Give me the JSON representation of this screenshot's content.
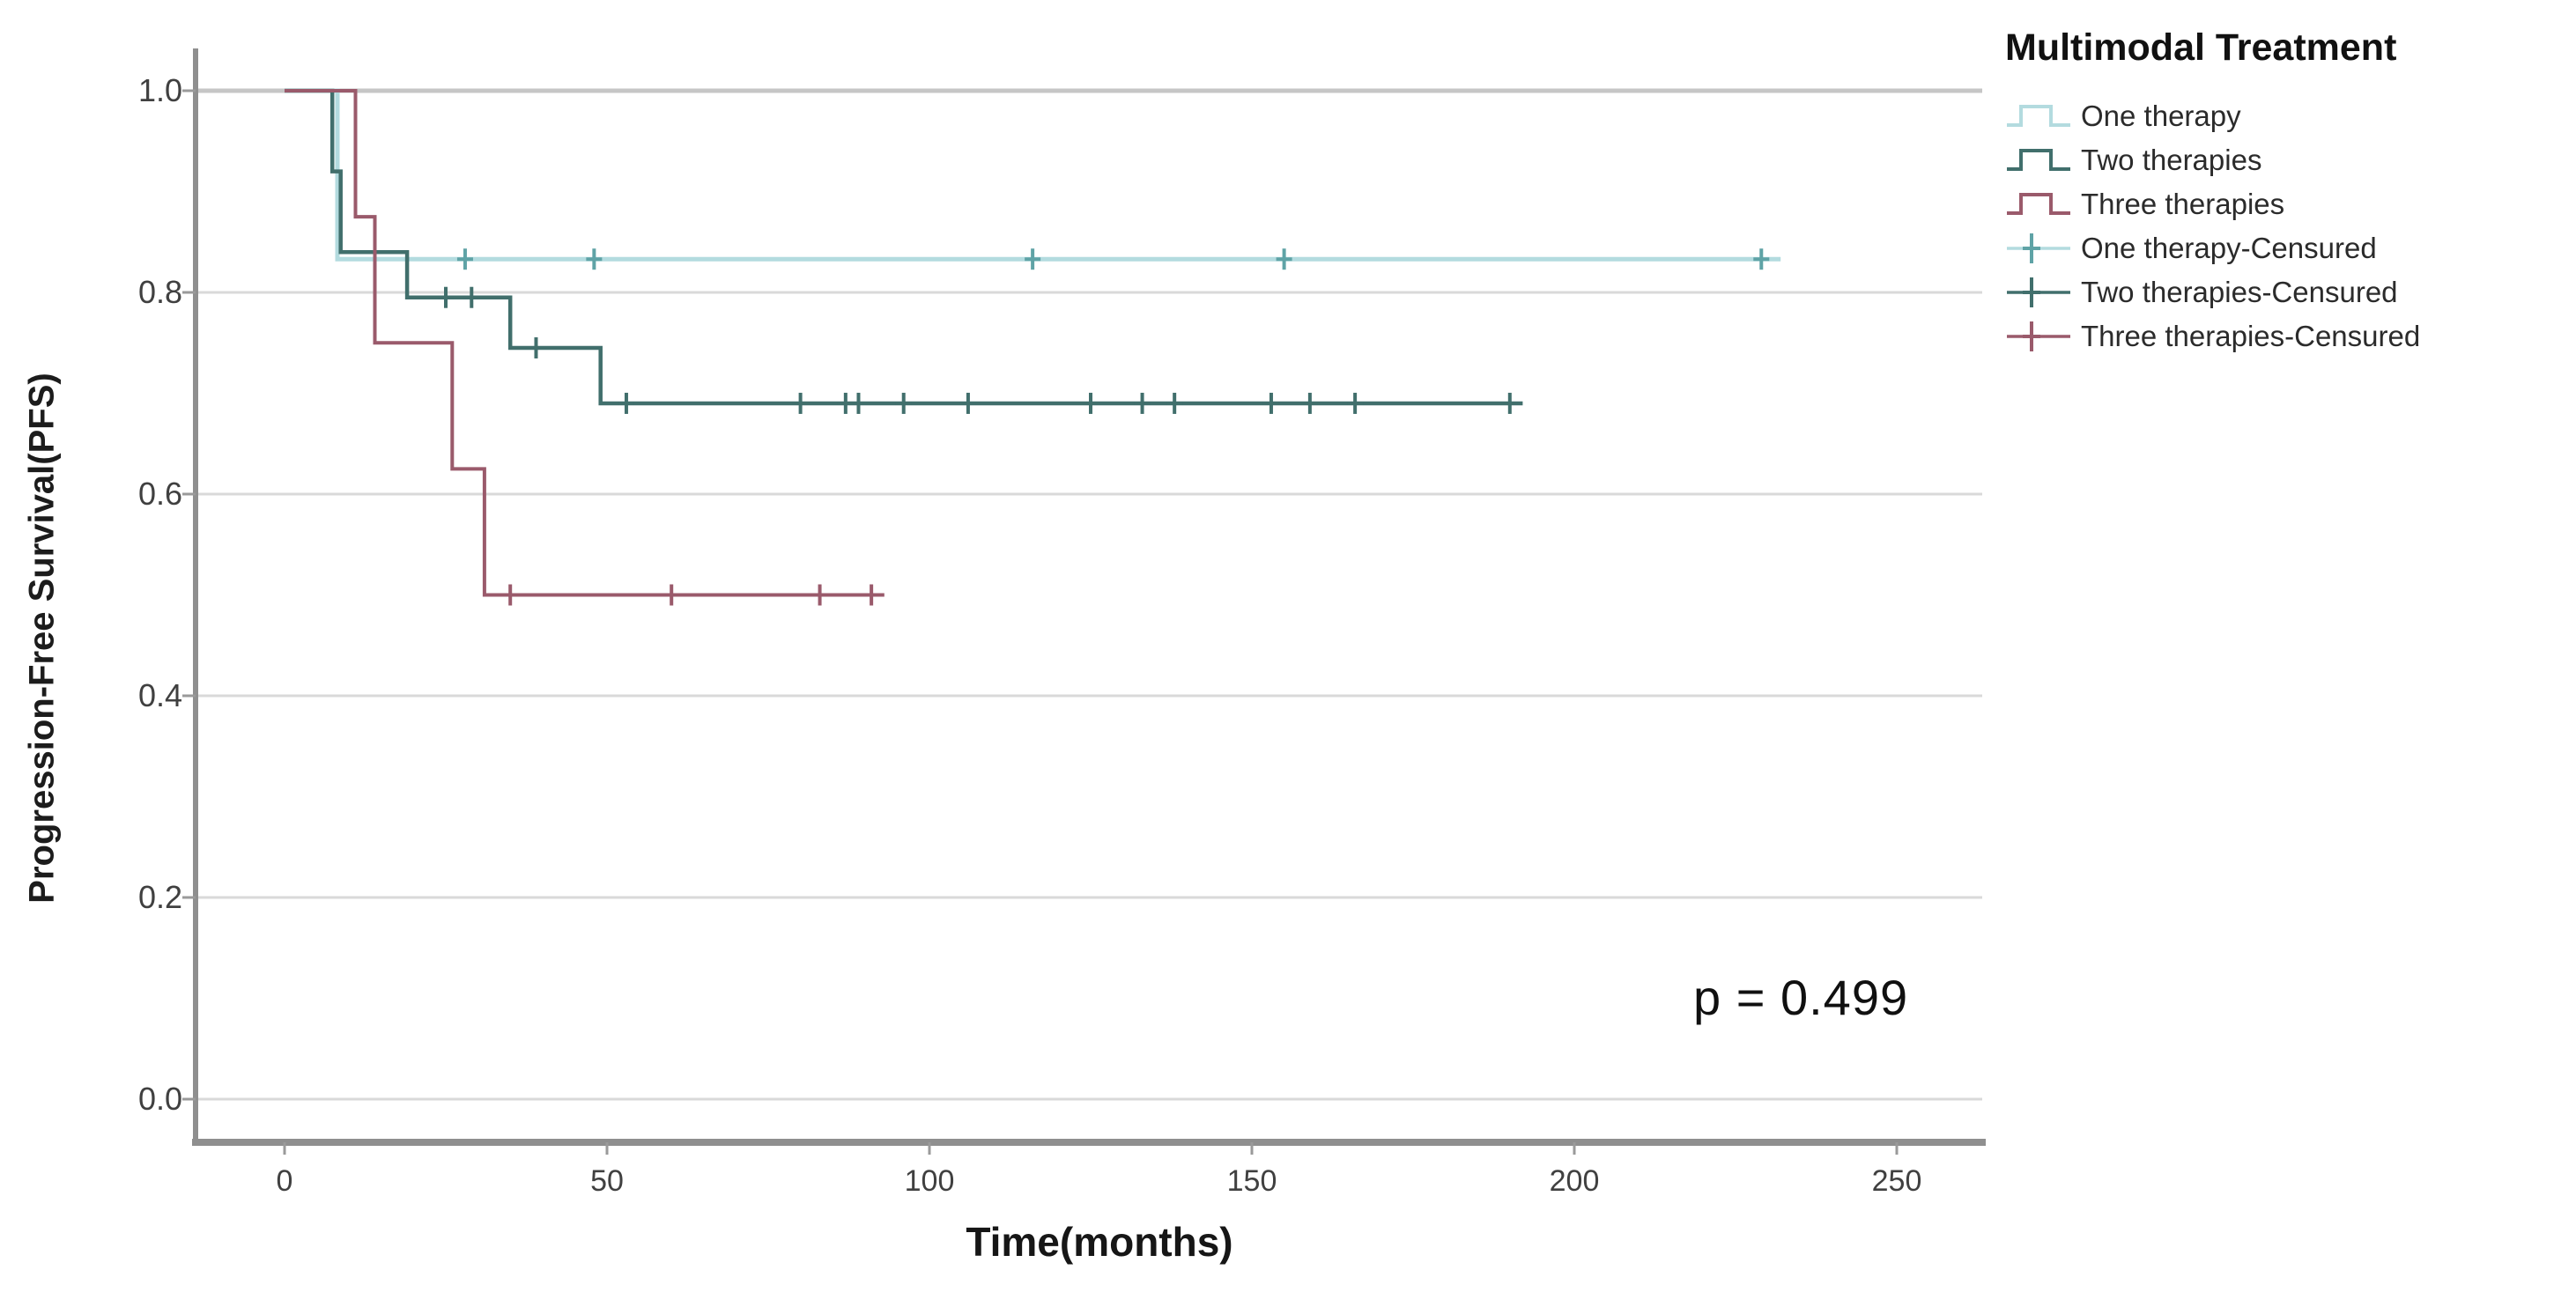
{
  "figure": {
    "y_axis_label": "Progression-Free Survival(PFS)",
    "x_axis_label": "Time(months)",
    "p_value_text": "p = 0.499",
    "legend": {
      "title": "Multimodal Treatment",
      "entries": [
        {
          "label": "One therapy",
          "type": "step",
          "color": "#b3dbdf",
          "marker_color": "#b3dbdf"
        },
        {
          "label": "Two therapies",
          "type": "step",
          "color": "#416f6c",
          "marker_color": "#416f6c"
        },
        {
          "label": "Three therapies",
          "type": "step",
          "color": "#9a5a6b",
          "marker_color": "#9a5a6b"
        },
        {
          "label": "One therapy-Censured",
          "type": "censor",
          "color": "#b3dbdf",
          "marker_color": "#5fa3a6"
        },
        {
          "label": "Two therapies-Censured",
          "type": "censor",
          "color": "#416f6c",
          "marker_color": "#416f6c"
        },
        {
          "label": "Three therapies-Censured",
          "type": "censor",
          "color": "#9a5a6b",
          "marker_color": "#9a5a6b"
        }
      ]
    }
  },
  "chart_data": {
    "type": "line",
    "subtype": "kaplan-meier-step",
    "title": "",
    "xlabel": "Time(months)",
    "ylabel": "Progression-Free Survival(PFS)",
    "xlim": [
      -14,
      263
    ],
    "ylim": [
      -0.04,
      1.04
    ],
    "x_ticks": [
      0,
      50,
      100,
      150,
      200,
      250
    ],
    "x_tick_labels": [
      "0",
      "50",
      "100",
      "150",
      "200",
      "250"
    ],
    "y_ticks": [
      0.0,
      0.2,
      0.4,
      0.6,
      0.8,
      1.0
    ],
    "y_tick_labels": [
      "0.0",
      "0.2",
      "0.4",
      "0.6",
      "0.8",
      "1.0"
    ],
    "grid": "horizontal",
    "legend_position": "right",
    "annotation": {
      "text": "p = 0.499",
      "x": 222,
      "y": 0.1
    },
    "series": [
      {
        "name": "One therapy",
        "color": "#b3dbdf",
        "censor_color": "#5fa3a6",
        "line_width": 5,
        "points": [
          [
            0,
            1.0
          ],
          [
            8.2,
            1.0
          ],
          [
            8.2,
            0.833
          ],
          [
            232,
            0.833
          ]
        ],
        "censors": [
          [
            28,
            0.833
          ],
          [
            48,
            0.833
          ],
          [
            116,
            0.833
          ],
          [
            155,
            0.833
          ],
          [
            229,
            0.833
          ]
        ]
      },
      {
        "name": "Two therapies",
        "color": "#416f6c",
        "censor_color": "#416f6c",
        "line_width": 4.5,
        "points": [
          [
            0,
            1.0
          ],
          [
            7.4,
            1.0
          ],
          [
            7.4,
            0.92
          ],
          [
            8.7,
            0.92
          ],
          [
            8.7,
            0.84
          ],
          [
            19,
            0.84
          ],
          [
            19,
            0.795
          ],
          [
            35,
            0.795
          ],
          [
            35,
            0.745
          ],
          [
            49,
            0.745
          ],
          [
            49,
            0.69
          ],
          [
            192,
            0.69
          ]
        ],
        "censors": [
          [
            25,
            0.795
          ],
          [
            29,
            0.795
          ],
          [
            39,
            0.745
          ],
          [
            53,
            0.69
          ],
          [
            80,
            0.69
          ],
          [
            87,
            0.69
          ],
          [
            89,
            0.69
          ],
          [
            96,
            0.69
          ],
          [
            106,
            0.69
          ],
          [
            125,
            0.69
          ],
          [
            133,
            0.69
          ],
          [
            138,
            0.69
          ],
          [
            153,
            0.69
          ],
          [
            159,
            0.69
          ],
          [
            166,
            0.69
          ],
          [
            190,
            0.69
          ]
        ]
      },
      {
        "name": "Three therapies",
        "color": "#9a5a6b",
        "censor_color": "#9a5a6b",
        "line_width": 4,
        "points": [
          [
            0,
            1.0
          ],
          [
            11,
            1.0
          ],
          [
            11,
            0.875
          ],
          [
            14,
            0.875
          ],
          [
            14,
            0.75
          ],
          [
            26,
            0.75
          ],
          [
            26,
            0.625
          ],
          [
            31,
            0.625
          ],
          [
            31,
            0.5
          ],
          [
            93,
            0.5
          ]
        ],
        "censors": [
          [
            35,
            0.5
          ],
          [
            60,
            0.5
          ],
          [
            83,
            0.5
          ],
          [
            91,
            0.5
          ]
        ]
      }
    ]
  }
}
